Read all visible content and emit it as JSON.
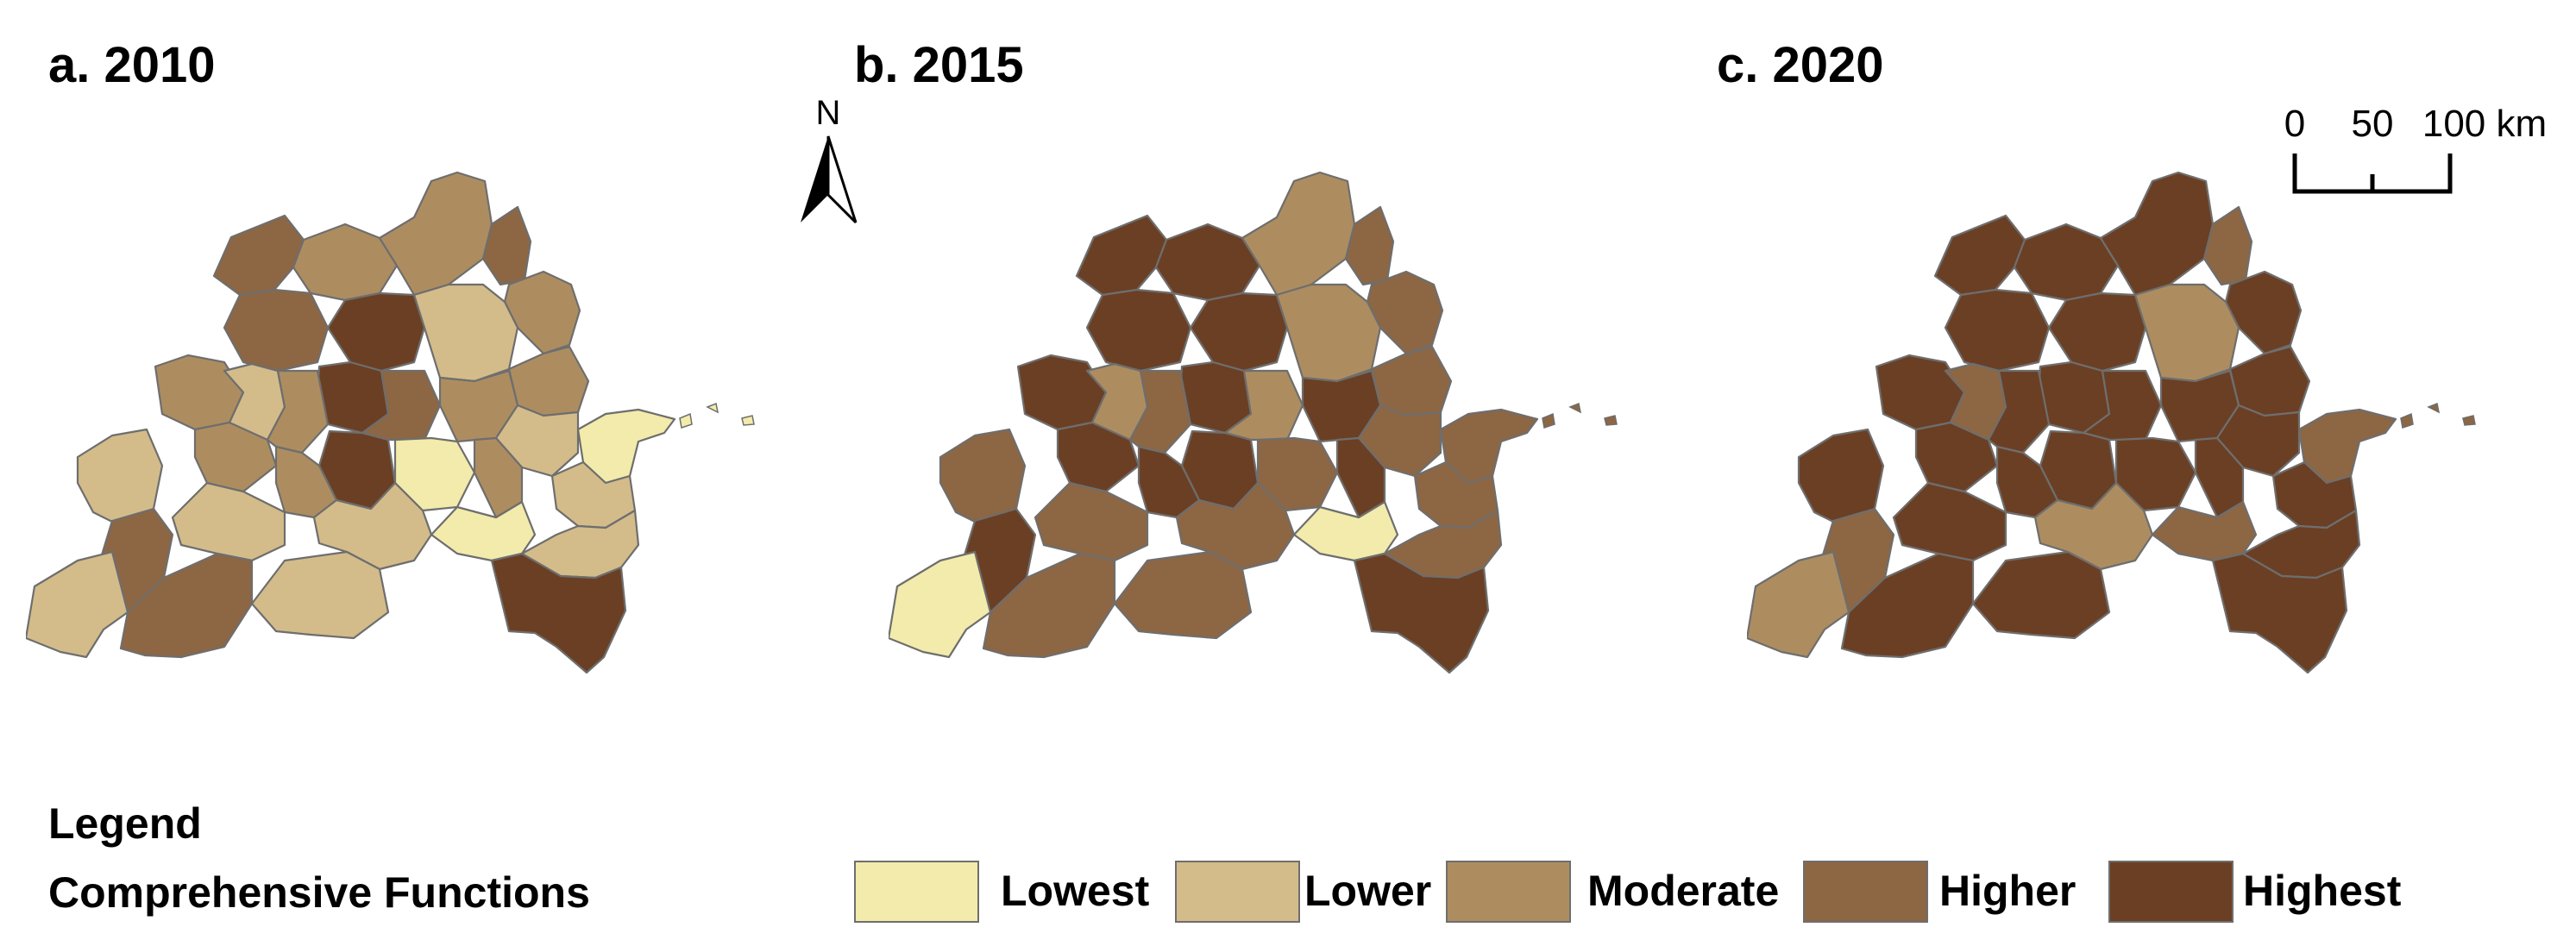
{
  "panels": [
    {
      "label": "a. 2010"
    },
    {
      "label": "b. 2015"
    },
    {
      "label": "c. 2020"
    }
  ],
  "north_arrow": {
    "label": "N"
  },
  "scale_bar": {
    "ticks": [
      "0",
      "50",
      "100 km"
    ]
  },
  "legend": {
    "heading": "Legend",
    "subheading": "Comprehensive Functions",
    "classes": [
      {
        "label": "Lowest",
        "color": "#f2ebab"
      },
      {
        "label": "Lower",
        "color": "#d3bc8a"
      },
      {
        "label": "Moderate",
        "color": "#ad8d60"
      },
      {
        "label": "Higher",
        "color": "#8d6643"
      },
      {
        "label": "Highest",
        "color": "#6b3f24"
      }
    ]
  },
  "map_data": {
    "levels": [
      "Lowest",
      "Lower",
      "Moderate",
      "Higher",
      "Highest"
    ],
    "maps": [
      {
        "year": "2010",
        "classes": [
          3,
          2,
          2,
          3,
          2,
          3,
          4,
          1,
          2,
          2,
          4,
          1,
          2,
          3,
          2,
          1,
          4,
          0,
          1,
          2,
          2,
          0,
          2,
          1,
          3,
          1,
          1,
          0,
          1,
          1,
          3,
          1,
          4
        ]
      },
      {
        "year": "2015",
        "classes": [
          4,
          4,
          2,
          3,
          3,
          4,
          4,
          2,
          3,
          4,
          4,
          2,
          3,
          2,
          4,
          3,
          4,
          3,
          3,
          4,
          4,
          3,
          4,
          3,
          4,
          3,
          3,
          0,
          3,
          0,
          3,
          3,
          4
        ]
      },
      {
        "year": "2020",
        "classes": [
          4,
          4,
          4,
          3,
          4,
          4,
          4,
          2,
          4,
          4,
          4,
          3,
          4,
          4,
          4,
          4,
          4,
          3,
          4,
          4,
          4,
          4,
          4,
          4,
          3,
          4,
          2,
          3,
          4,
          2,
          4,
          4,
          4
        ]
      }
    ]
  }
}
